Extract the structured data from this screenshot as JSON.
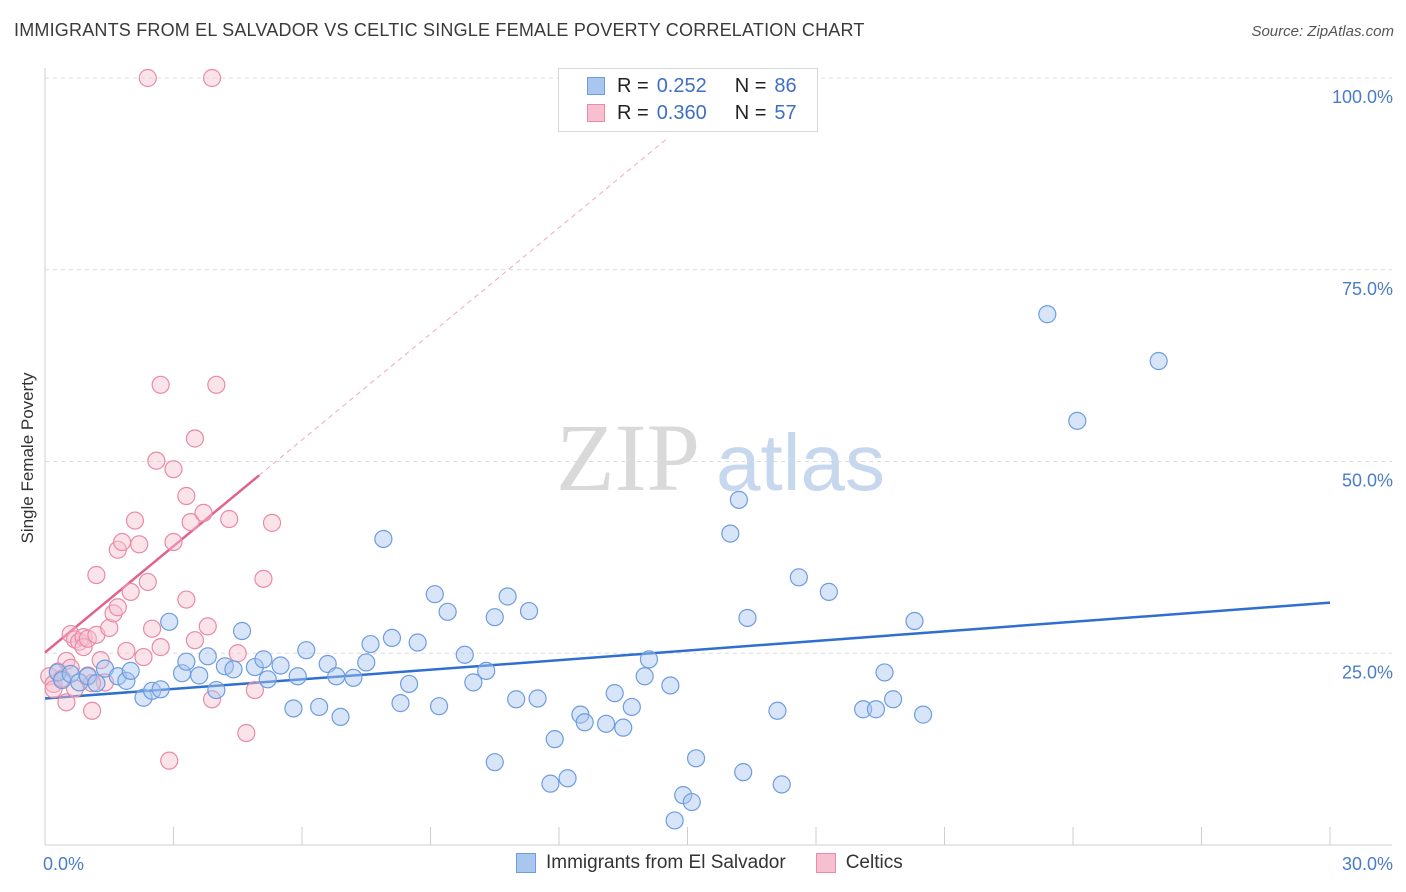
{
  "title": "IMMIGRANTS FROM EL SALVADOR VS CELTIC SINGLE FEMALE POVERTY CORRELATION CHART",
  "source": "Source: ZipAtlas.com",
  "watermark": {
    "zip": "ZIP",
    "atlas": "atlas"
  },
  "legend": {
    "rows": [
      {
        "r_label": "R =",
        "r_value": "0.252",
        "n_label": "N =",
        "n_value": "86",
        "color": "#a9c6ef",
        "border": "#6d9de0"
      },
      {
        "r_label": "R =",
        "r_value": "0.360",
        "n_label": "N =",
        "n_value": "57",
        "color": "#f7c0d0",
        "border": "#e98aa7"
      }
    ]
  },
  "bottom_legend": [
    {
      "label": "Immigrants from El Salvador",
      "color": "#a9c6ef",
      "border": "#6d9de0"
    },
    {
      "label": "Celtics",
      "color": "#f7c0d0",
      "border": "#e98aa7"
    }
  ],
  "chart_data": {
    "type": "scatter",
    "title": "IMMIGRANTS FROM EL SALVADOR VS CELTIC SINGLE FEMALE POVERTY CORRELATION CHART",
    "xlabel": "",
    "ylabel": "Single Female Poverty",
    "xlim": [
      0,
      30
    ],
    "ylim": [
      0,
      100
    ],
    "x_tick_labels": [
      "0.0%",
      "30.0%"
    ],
    "y_tick_labels": [
      "25.0%",
      "50.0%",
      "75.0%",
      "100.0%"
    ],
    "y_ticks": [
      25,
      50,
      75,
      100
    ],
    "grid": true,
    "legend_position": "top-center",
    "series": [
      {
        "name": "Immigrants from El Salvador",
        "color": "#6d9de0",
        "fill": "#a9c6ef",
        "trend": {
          "x": [
            0,
            30
          ],
          "y": [
            19.1,
            31.6
          ],
          "color": "#2f6fcf"
        },
        "points": [
          [
            0.3,
            22.5
          ],
          [
            0.4,
            21.5
          ],
          [
            0.6,
            22.3
          ],
          [
            0.8,
            21.2
          ],
          [
            1.0,
            22.0
          ],
          [
            1.2,
            21.1
          ],
          [
            1.4,
            23.0
          ],
          [
            1.7,
            22.0
          ],
          [
            1.9,
            21.4
          ],
          [
            2.0,
            22.7
          ],
          [
            2.3,
            19.2
          ],
          [
            2.5,
            20.1
          ],
          [
            2.7,
            20.3
          ],
          [
            2.9,
            29.1
          ],
          [
            3.2,
            22.4
          ],
          [
            3.3,
            23.9
          ],
          [
            3.6,
            22.1
          ],
          [
            3.8,
            24.6
          ],
          [
            4.0,
            20.2
          ],
          [
            4.2,
            23.3
          ],
          [
            4.4,
            22.9
          ],
          [
            4.6,
            27.9
          ],
          [
            4.9,
            23.2
          ],
          [
            5.1,
            24.2
          ],
          [
            5.2,
            21.6
          ],
          [
            5.5,
            23.4
          ],
          [
            5.8,
            17.8
          ],
          [
            5.9,
            22.0
          ],
          [
            6.1,
            25.4
          ],
          [
            6.4,
            18.0
          ],
          [
            6.6,
            23.6
          ],
          [
            6.8,
            22.0
          ],
          [
            6.9,
            16.7
          ],
          [
            7.2,
            21.8
          ],
          [
            7.5,
            23.8
          ],
          [
            7.6,
            26.2
          ],
          [
            7.9,
            39.9
          ],
          [
            8.1,
            27.0
          ],
          [
            8.3,
            18.5
          ],
          [
            8.5,
            21.0
          ],
          [
            8.7,
            26.4
          ],
          [
            9.1,
            32.7
          ],
          [
            9.2,
            18.1
          ],
          [
            9.4,
            30.4
          ],
          [
            9.8,
            24.8
          ],
          [
            10.0,
            21.2
          ],
          [
            10.3,
            22.7
          ],
          [
            10.5,
            10.8
          ],
          [
            10.5,
            29.7
          ],
          [
            10.8,
            32.4
          ],
          [
            11.0,
            19.0
          ],
          [
            11.3,
            30.5
          ],
          [
            11.5,
            19.1
          ],
          [
            11.8,
            8.0
          ],
          [
            11.9,
            13.8
          ],
          [
            12.2,
            8.7
          ],
          [
            12.5,
            17.0
          ],
          [
            12.6,
            16.0
          ],
          [
            13.1,
            15.8
          ],
          [
            13.3,
            19.8
          ],
          [
            13.5,
            15.3
          ],
          [
            13.7,
            18.0
          ],
          [
            14.0,
            22.0
          ],
          [
            14.1,
            24.2
          ],
          [
            14.6,
            20.8
          ],
          [
            14.7,
            3.2
          ],
          [
            14.9,
            6.5
          ],
          [
            15.1,
            5.6
          ],
          [
            15.2,
            11.3
          ],
          [
            16.0,
            40.6
          ],
          [
            16.2,
            45.0
          ],
          [
            16.3,
            9.5
          ],
          [
            16.4,
            29.6
          ],
          [
            17.1,
            17.5
          ],
          [
            17.2,
            7.9
          ],
          [
            17.6,
            34.9
          ],
          [
            18.3,
            33.0
          ],
          [
            19.1,
            17.7
          ],
          [
            19.4,
            17.7
          ],
          [
            19.6,
            22.5
          ],
          [
            19.8,
            19.0
          ],
          [
            20.3,
            29.2
          ],
          [
            20.5,
            17.0
          ],
          [
            23.4,
            69.2
          ],
          [
            24.1,
            55.3
          ],
          [
            26.0,
            63.1
          ]
        ]
      },
      {
        "name": "Celtics",
        "color": "#e98aa7",
        "fill": "#f7c0d0",
        "trend": {
          "x": [
            0,
            5
          ],
          "y": [
            25.1,
            48.2
          ],
          "color": "#e0638f",
          "extended": {
            "x": [
              5,
              14.5
            ],
            "y": [
              48.2,
              92
            ]
          }
        },
        "points": [
          [
            0.1,
            22.0
          ],
          [
            0.2,
            21.0
          ],
          [
            0.2,
            20.3
          ],
          [
            0.3,
            22.6
          ],
          [
            0.4,
            21.7
          ],
          [
            0.5,
            24.0
          ],
          [
            0.5,
            18.6
          ],
          [
            0.6,
            27.5
          ],
          [
            0.6,
            23.1
          ],
          [
            0.7,
            26.8
          ],
          [
            0.7,
            20.4
          ],
          [
            0.8,
            26.5
          ],
          [
            0.9,
            27.1
          ],
          [
            0.9,
            25.8
          ],
          [
            1.0,
            26.9
          ],
          [
            1.0,
            22.1
          ],
          [
            1.1,
            17.5
          ],
          [
            1.2,
            35.2
          ],
          [
            1.2,
            27.4
          ],
          [
            1.3,
            24.1
          ],
          [
            1.4,
            21.2
          ],
          [
            1.5,
            28.3
          ],
          [
            1.6,
            30.2
          ],
          [
            1.7,
            38.5
          ],
          [
            1.7,
            31.0
          ],
          [
            1.8,
            39.5
          ],
          [
            1.9,
            25.3
          ],
          [
            2.0,
            33.0
          ],
          [
            2.1,
            42.3
          ],
          [
            2.2,
            39.2
          ],
          [
            2.3,
            24.5
          ],
          [
            2.4,
            34.3
          ],
          [
            2.5,
            28.2
          ],
          [
            2.6,
            50.1
          ],
          [
            2.7,
            60.0
          ],
          [
            2.7,
            25.8
          ],
          [
            2.9,
            11.0
          ],
          [
            3.0,
            39.5
          ],
          [
            3.0,
            49.0
          ],
          [
            3.3,
            32.0
          ],
          [
            3.3,
            45.5
          ],
          [
            3.4,
            42.1
          ],
          [
            3.5,
            53.0
          ],
          [
            3.5,
            26.7
          ],
          [
            3.7,
            43.3
          ],
          [
            3.8,
            28.5
          ],
          [
            3.9,
            19.0
          ],
          [
            4.0,
            60.0
          ],
          [
            4.3,
            42.5
          ],
          [
            4.5,
            25.0
          ],
          [
            4.7,
            14.6
          ],
          [
            4.9,
            20.2
          ],
          [
            5.1,
            34.7
          ],
          [
            5.3,
            42.0
          ],
          [
            2.4,
            100
          ],
          [
            3.9,
            100
          ],
          [
            1.1,
            21.1
          ]
        ]
      }
    ]
  }
}
